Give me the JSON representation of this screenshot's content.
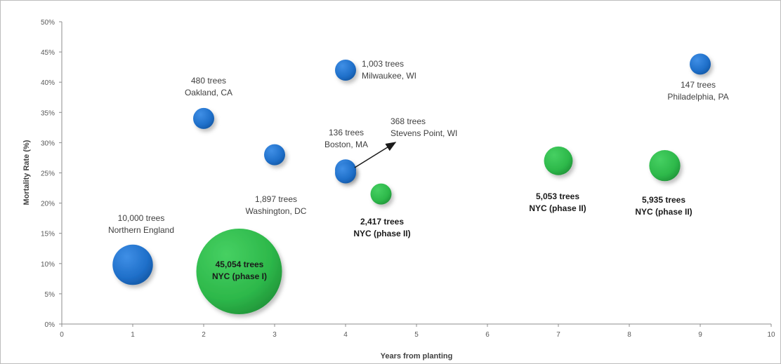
{
  "chart_data": {
    "type": "bubble",
    "xlabel": "Years from planting",
    "ylabel": "Mortality Rate (%)",
    "xlim": [
      0,
      10
    ],
    "ylim": [
      0,
      50
    ],
    "x_ticks": [
      "0",
      "1",
      "2",
      "3",
      "4",
      "5",
      "6",
      "7",
      "8",
      "9",
      "10"
    ],
    "y_ticks": [
      "0%",
      "5%",
      "10%",
      "15%",
      "20%",
      "25%",
      "30%",
      "35%",
      "40%",
      "45%",
      "50%"
    ],
    "grid": false,
    "colors": {
      "other_cities": "#1f6fc9",
      "nyc": "#2db84a"
    },
    "points": [
      {
        "x": 1,
        "y": 9.8,
        "trees": 10000,
        "label_lines": [
          "10,000 trees",
          "Northern England"
        ],
        "group": "other_cities"
      },
      {
        "x": 2,
        "y": 34,
        "trees": 480,
        "label_lines": [
          "480 trees",
          "Oakland, CA"
        ],
        "group": "other_cities"
      },
      {
        "x": 3,
        "y": 28,
        "trees": 1897,
        "label_lines": [
          "1,897 trees",
          "Washington, DC"
        ],
        "group": "other_cities"
      },
      {
        "x": 4,
        "y": 42,
        "trees": 1003,
        "label_lines": [
          "1,003 trees",
          "Milwaukee, WI"
        ],
        "group": "other_cities"
      },
      {
        "x": 4,
        "y": 25,
        "trees": 136,
        "label_lines": [
          "136 trees",
          "Boston, MA"
        ],
        "group": "other_cities"
      },
      {
        "x": 4,
        "y": 25.5,
        "trees": 368,
        "label_lines": [
          "368 trees",
          "Stevens Point, WI"
        ],
        "group": "other_cities"
      },
      {
        "x": 9,
        "y": 43,
        "trees": 147,
        "label_lines": [
          "147 trees",
          "Philadelphia, PA"
        ],
        "group": "other_cities"
      },
      {
        "x": 2.5,
        "y": 8.7,
        "trees": 45054,
        "label_lines": [
          "45,054 trees",
          "NYC (phase I)"
        ],
        "group": "nyc"
      },
      {
        "x": 4.5,
        "y": 21.5,
        "trees": 2417,
        "label_lines": [
          "2,417 trees",
          "NYC (phase II)"
        ],
        "group": "nyc"
      },
      {
        "x": 7,
        "y": 27,
        "trees": 5053,
        "label_lines": [
          "5,053 trees",
          "NYC (phase II)"
        ],
        "group": "nyc"
      },
      {
        "x": 8.5,
        "y": 26.2,
        "trees": 5935,
        "label_lines": [
          "5,935 trees",
          "NYC (phase II)"
        ],
        "group": "nyc"
      }
    ]
  }
}
